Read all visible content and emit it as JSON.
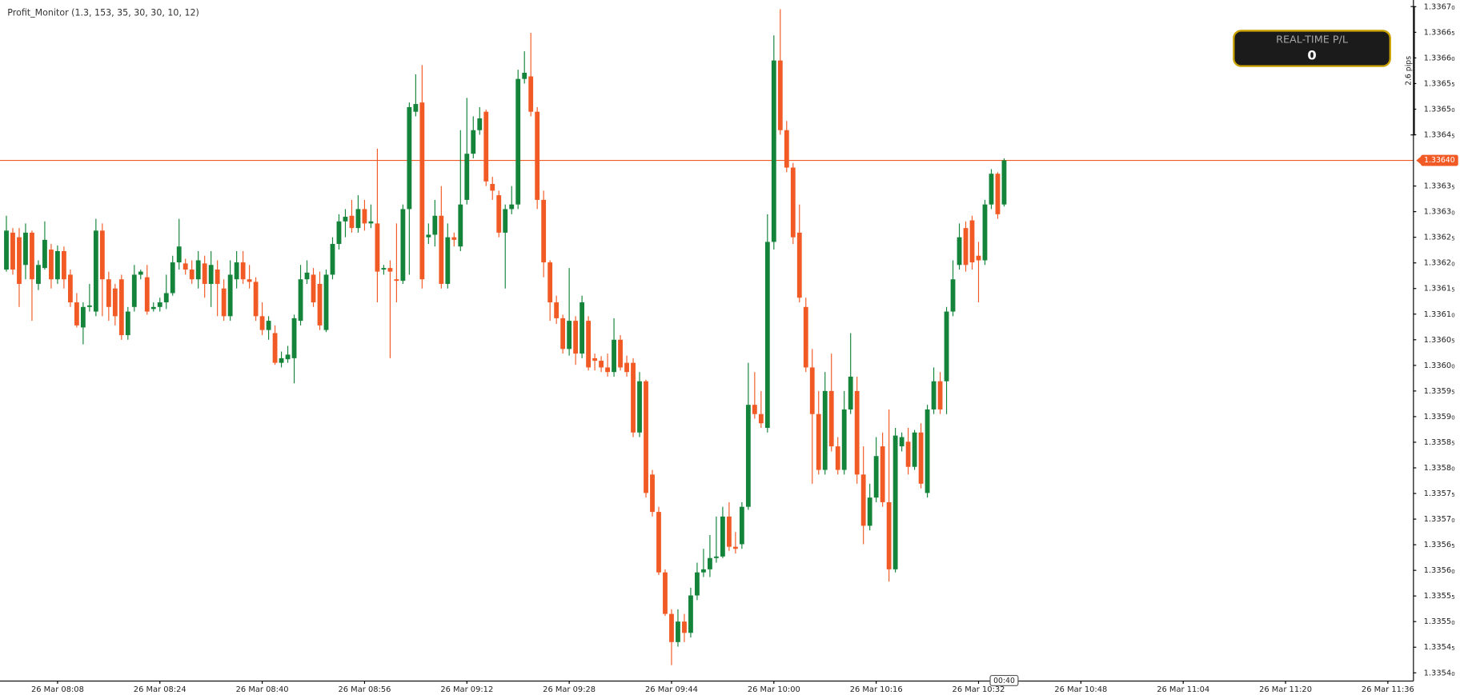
{
  "chart_data": {
    "type": "candlestick",
    "title": "Profit_Monitor (1.3, 153, 35, 30, 30, 10, 12)",
    "up_color": "#13843a",
    "down_color": "#f15a24",
    "grid": false,
    "x": [
      "26 Mar 08:00",
      "26 Mar 08:01",
      "26 Mar 08:02",
      "26 Mar 08:03",
      "26 Mar 08:04",
      "26 Mar 08:05",
      "26 Mar 08:06",
      "26 Mar 08:07",
      "26 Mar 08:08",
      "26 Mar 08:09",
      "26 Mar 08:10",
      "26 Mar 08:11",
      "26 Mar 08:12",
      "26 Mar 08:13",
      "26 Mar 08:14",
      "26 Mar 08:15",
      "26 Mar 08:16",
      "26 Mar 08:17",
      "26 Mar 08:18",
      "26 Mar 08:19",
      "26 Mar 08:20",
      "26 Mar 08:21",
      "26 Mar 08:22",
      "26 Mar 08:23",
      "26 Mar 08:24",
      "26 Mar 08:25",
      "26 Mar 08:26",
      "26 Mar 08:27",
      "26 Mar 08:28",
      "26 Mar 08:29",
      "26 Mar 08:30",
      "26 Mar 08:31",
      "26 Mar 08:32",
      "26 Mar 08:33",
      "26 Mar 08:34",
      "26 Mar 08:35",
      "26 Mar 08:36",
      "26 Mar 08:37",
      "26 Mar 08:38",
      "26 Mar 08:39",
      "26 Mar 08:40",
      "26 Mar 08:41",
      "26 Mar 08:42",
      "26 Mar 08:43",
      "26 Mar 08:44",
      "26 Mar 08:45",
      "26 Mar 08:46",
      "26 Mar 08:47",
      "26 Mar 08:48",
      "26 Mar 08:49",
      "26 Mar 08:50",
      "26 Mar 08:51",
      "26 Mar 08:52",
      "26 Mar 08:53",
      "26 Mar 08:54",
      "26 Mar 08:55",
      "26 Mar 08:56",
      "26 Mar 08:57",
      "26 Mar 08:58",
      "26 Mar 08:59",
      "26 Mar 09:00",
      "26 Mar 09:01",
      "26 Mar 09:02",
      "26 Mar 09:03",
      "26 Mar 09:04",
      "26 Mar 09:05",
      "26 Mar 09:06",
      "26 Mar 09:07",
      "26 Mar 09:08",
      "26 Mar 09:09",
      "26 Mar 09:10",
      "26 Mar 09:11",
      "26 Mar 09:12",
      "26 Mar 09:13",
      "26 Mar 09:14",
      "26 Mar 09:15",
      "26 Mar 09:16",
      "26 Mar 09:17",
      "26 Mar 09:18",
      "26 Mar 09:19",
      "26 Mar 09:20",
      "26 Mar 09:21",
      "26 Mar 09:22",
      "26 Mar 09:23",
      "26 Mar 09:24",
      "26 Mar 09:25",
      "26 Mar 09:26",
      "26 Mar 09:27",
      "26 Mar 09:28",
      "26 Mar 09:29",
      "26 Mar 09:30",
      "26 Mar 09:31",
      "26 Mar 09:32",
      "26 Mar 09:33",
      "26 Mar 09:34",
      "26 Mar 09:35",
      "26 Mar 09:36",
      "26 Mar 09:37",
      "26 Mar 09:38",
      "26 Mar 09:39",
      "26 Mar 09:40",
      "26 Mar 09:41",
      "26 Mar 09:42",
      "26 Mar 09:43",
      "26 Mar 09:44",
      "26 Mar 09:45",
      "26 Mar 09:46",
      "26 Mar 09:47",
      "26 Mar 09:48",
      "26 Mar 09:49",
      "26 Mar 09:50",
      "26 Mar 09:51",
      "26 Mar 09:52",
      "26 Mar 09:53",
      "26 Mar 09:54",
      "26 Mar 09:55",
      "26 Mar 09:56",
      "26 Mar 09:57",
      "26 Mar 09:58",
      "26 Mar 09:59",
      "26 Mar 10:00",
      "26 Mar 10:01",
      "26 Mar 10:02",
      "26 Mar 10:03",
      "26 Mar 10:04",
      "26 Mar 10:05",
      "26 Mar 10:06",
      "26 Mar 10:07",
      "26 Mar 10:08",
      "26 Mar 10:09",
      "26 Mar 10:10",
      "26 Mar 10:11",
      "26 Mar 10:12",
      "26 Mar 10:13",
      "26 Mar 10:14",
      "26 Mar 10:15",
      "26 Mar 10:16",
      "26 Mar 10:17",
      "26 Mar 10:18",
      "26 Mar 10:19",
      "26 Mar 10:20",
      "26 Mar 10:21",
      "26 Mar 10:22",
      "26 Mar 10:23",
      "26 Mar 10:24",
      "26 Mar 10:25",
      "26 Mar 10:26",
      "26 Mar 10:27",
      "26 Mar 10:28",
      "26 Mar 10:29",
      "26 Mar 10:30",
      "26 Mar 10:31",
      "26 Mar 10:32",
      "26 Mar 10:33",
      "26 Mar 10:34",
      "26 Mar 10:35",
      "26 Mar 10:36"
    ],
    "open": [
      1.336187,
      1.336259,
      1.33625,
      1.336196,
      1.336259,
      1.336159,
      1.33619,
      1.336226,
      1.336168,
      1.336223,
      1.336177,
      1.336123,
      1.336074,
      1.336114,
      1.336105,
      1.336263,
      1.336168,
      1.33615,
      1.336168,
      1.336059,
      1.336114,
      1.336177,
      1.336172,
      1.33611,
      1.336114,
      1.336123,
      1.336141,
      1.336201,
      1.336199,
      1.336187,
      1.336168,
      1.336199,
      1.336159,
      1.336187,
      1.33615,
      1.336096,
      1.336168,
      1.336201,
      1.336168,
      1.336163,
      1.336096,
      1.336069,
      1.336063,
      1.336005,
      1.336012,
      1.336014,
      1.336087,
      1.336168,
      1.336177,
      1.336159,
      1.336069,
      1.336177,
      1.336237,
      1.336281,
      1.336292,
      1.336268,
      1.336305,
      1.336277,
      1.336277,
      1.336187,
      1.33619,
      1.336168,
      1.336165,
      1.336305,
      1.336495,
      1.336513,
      1.33625,
      1.336255,
      1.336292,
      1.336159,
      1.33625,
      1.336232,
      1.336323,
      1.336413,
      1.336459,
      1.336495,
      1.336354,
      1.336332,
      1.336259,
      1.336305,
      1.336314,
      1.336559,
      1.336564,
      1.336495,
      1.336323,
      1.336201,
      1.336123,
      1.336092,
      1.336032,
      1.336087,
      1.336023,
      1.336087,
      1.336014,
      1.336009,
      1.335996,
      1.335987,
      1.33605,
      1.336005,
      1.336005,
      1.335869,
      1.335969,
      1.335787,
      1.335714,
      1.335596,
      1.335515,
      1.33546,
      1.3355,
      1.335478,
      1.335551,
      1.335596,
      1.335602,
      1.335624,
      1.335627,
      1.335705,
      1.335646,
      1.335651,
      1.335724,
      1.335923,
      1.335905,
      1.335878,
      1.336241,
      1.336595,
      1.336459,
      1.336386,
      1.336259,
      1.336114,
      1.335996,
      1.335905,
      1.335796,
      1.33595,
      1.335842,
      1.335796,
      1.335914,
      1.33595,
      1.335787,
      1.335687,
      1.335742,
      1.335842,
      1.335733,
      1.335602,
      1.335842,
      1.335851,
      1.335802,
      1.335869,
      1.335751,
      1.335914,
      1.335969,
      1.335969,
      1.336105,
      1.336196,
      1.336268,
      1.336283,
      1.336214,
      1.336205,
      1.336314,
      1.336374,
      1.336314
    ],
    "high": [
      1.336292,
      1.336268,
      1.336268,
      1.336277,
      1.336263,
      1.336205,
      1.336281,
      1.336237,
      1.336234,
      1.336232,
      1.336187,
      1.336141,
      1.336123,
      1.336159,
      1.336286,
      1.336277,
      1.336183,
      1.336159,
      1.336177,
      1.336114,
      1.336196,
      1.336187,
      1.336196,
      1.336123,
      1.336132,
      1.336177,
      1.336214,
      1.336286,
      1.336208,
      1.336205,
      1.336223,
      1.336214,
      1.336223,
      1.336205,
      1.336168,
      1.336205,
      1.336223,
      1.336223,
      1.336196,
      1.336172,
      1.336123,
      1.336096,
      1.336078,
      1.336027,
      1.336038,
      1.336099,
      1.336196,
      1.336205,
      1.33619,
      1.336183,
      1.336187,
      1.33625,
      1.336295,
      1.336305,
      1.336323,
      1.336332,
      1.336323,
      1.336314,
      1.336423,
      1.336196,
      1.336205,
      1.336277,
      1.336314,
      1.336513,
      1.336568,
      1.336586,
      1.336277,
      1.336323,
      1.33635,
      1.336277,
      1.336259,
      1.336459,
      1.336522,
      1.336486,
      1.336504,
      1.336499,
      1.336368,
      1.336341,
      1.336314,
      1.33635,
      1.336577,
      1.336613,
      1.336649,
      1.336504,
      1.336341,
      1.336205,
      1.336136,
      1.336099,
      1.33619,
      1.336096,
      1.336136,
      1.336096,
      1.336023,
      1.336018,
      1.336023,
      1.336092,
      1.336059,
      1.336019,
      1.336014,
      1.335987,
      1.335972,
      1.335796,
      1.335724,
      1.335602,
      1.335524,
      1.335524,
      1.335515,
      1.335566,
      1.335615,
      1.335642,
      1.335669,
      1.335705,
      1.335724,
      1.335733,
      1.335675,
      1.335733,
      1.336005,
      1.335987,
      1.33595,
      1.336295,
      1.336644,
      1.336695,
      1.336477,
      1.336395,
      1.336314,
      1.336132,
      1.336032,
      1.33595,
      1.335987,
      1.336023,
      1.33586,
      1.33595,
      1.336063,
      1.335978,
      1.335842,
      1.335769,
      1.33586,
      1.335869,
      1.335914,
      1.335878,
      1.335869,
      1.335878,
      1.335874,
      1.335887,
      1.335923,
      1.335996,
      1.335987,
      1.336114,
      1.336205,
      1.336277,
      1.336281,
      1.336292,
      1.336241,
      1.336323,
      1.336383,
      1.336377,
      1.336404
    ],
    "low": [
      1.336183,
      1.336177,
      1.336114,
      1.336168,
      1.336087,
      1.336147,
      1.336187,
      1.33615,
      1.336159,
      1.33615,
      1.336114,
      1.336074,
      1.336041,
      1.336105,
      1.336096,
      1.336096,
      1.336087,
      1.336078,
      1.33605,
      1.33605,
      1.336105,
      1.336168,
      1.336099,
      1.336105,
      1.336105,
      1.33611,
      1.336136,
      1.336187,
      1.336177,
      1.336159,
      1.33615,
      1.336132,
      1.336114,
      1.336096,
      1.336087,
      1.336087,
      1.33615,
      1.336159,
      1.33615,
      1.336087,
      1.336059,
      1.33605,
      1.336001,
      1.335996,
      1.336005,
      1.335965,
      1.336078,
      1.336159,
      1.336114,
      1.336069,
      1.336065,
      1.336168,
      1.336226,
      1.33625,
      1.336259,
      1.336259,
      1.336263,
      1.336268,
      1.336123,
      1.336177,
      1.336014,
      1.336123,
      1.336159,
      1.336177,
      1.336486,
      1.33615,
      1.336237,
      1.336232,
      1.33615,
      1.33615,
      1.336232,
      1.336223,
      1.336314,
      1.336404,
      1.33645,
      1.33635,
      1.336323,
      1.33625,
      1.33615,
      1.336295,
      1.336305,
      1.33655,
      1.336486,
      1.336305,
      1.336172,
      1.336087,
      1.336081,
      1.336023,
      1.336019,
      1.336001,
      1.336014,
      1.33599,
      1.33599,
      1.335987,
      1.335978,
      1.335978,
      1.33599,
      1.335978,
      1.33586,
      1.33586,
      1.335742,
      1.335705,
      1.335591,
      1.335511,
      1.335415,
      1.335451,
      1.33546,
      1.335469,
      1.335542,
      1.335587,
      1.335587,
      1.335615,
      1.335624,
      1.335638,
      1.335633,
      1.335642,
      1.335718,
      1.335896,
      1.335878,
      1.335869,
      1.336226,
      1.33645,
      1.336377,
      1.336237,
      1.336123,
      1.335987,
      1.335769,
      1.335787,
      1.335787,
      1.335832,
      1.335787,
      1.335787,
      1.335905,
      1.335769,
      1.335651,
      1.335678,
      1.335733,
      1.335724,
      1.335578,
      1.335596,
      1.335832,
      1.335787,
      1.335796,
      1.33576,
      1.335742,
      1.335905,
      1.335905,
      1.335905,
      1.336096,
      1.336187,
      1.336183,
      1.336187,
      1.336123,
      1.336196,
      1.336305,
      1.336286,
      1.33631
    ],
    "close": [
      1.336263,
      1.336187,
      1.336159,
      1.336259,
      1.336168,
      1.336196,
      1.336245,
      1.336168,
      1.336223,
      1.336168,
      1.336123,
      1.336078,
      1.336114,
      1.336117,
      1.336263,
      1.336168,
      1.336114,
      1.336096,
      1.336059,
      1.336105,
      1.336177,
      1.336183,
      1.336105,
      1.336114,
      1.336123,
      1.336141,
      1.336201,
      1.336232,
      1.336187,
      1.336168,
      1.336205,
      1.336159,
      1.336196,
      1.336159,
      1.336096,
      1.336177,
      1.336201,
      1.336168,
      1.336163,
      1.336096,
      1.336069,
      1.336087,
      1.336005,
      1.336014,
      1.336021,
      1.336092,
      1.336168,
      1.336181,
      1.336123,
      1.336078,
      1.336177,
      1.336237,
      1.336281,
      1.33629,
      1.336268,
      1.336305,
      1.336277,
      1.336281,
      1.336183,
      1.33619,
      1.336183,
      1.336165,
      1.336305,
      1.336504,
      1.33651,
      1.336168,
      1.336255,
      1.336292,
      1.336159,
      1.33625,
      1.336245,
      1.336314,
      1.336413,
      1.336459,
      1.336482,
      1.336359,
      1.336341,
      1.336259,
      1.336305,
      1.336314,
      1.336559,
      1.336571,
      1.336495,
      1.336323,
      1.336201,
      1.336123,
      1.336092,
      1.336032,
      1.336087,
      1.336023,
      1.336123,
      1.335996,
      1.336009,
      1.335996,
      1.335987,
      1.33605,
      1.335996,
      1.335987,
      1.335869,
      1.335969,
      1.335751,
      1.335714,
      1.335596,
      1.335515,
      1.33546,
      1.3355,
      1.335478,
      1.335551,
      1.335596,
      1.335602,
      1.335624,
      1.335627,
      1.335705,
      1.335646,
      1.335642,
      1.335724,
      1.335923,
      1.335905,
      1.335887,
      1.336241,
      1.336595,
      1.336459,
      1.336386,
      1.33625,
      1.336132,
      1.335996,
      1.335905,
      1.335796,
      1.33595,
      1.335842,
      1.335796,
      1.335914,
      1.335978,
      1.335787,
      1.335687,
      1.335742,
      1.335823,
      1.335733,
      1.335602,
      1.335863,
      1.33586,
      1.335802,
      1.335869,
      1.335769,
      1.335914,
      1.335969,
      1.335914,
      1.336105,
      1.336168,
      1.33625,
      1.336196,
      1.336201,
      1.336205,
      1.336314,
      1.336374,
      1.336295,
      1.3364
    ],
    "xlim": [
      "26 Mar 07:59",
      "26 Mar 11:40"
    ],
    "xticks": [
      "26 Mar 08:08",
      "26 Mar 08:24",
      "26 Mar 08:40",
      "26 Mar 08:56",
      "26 Mar 09:12",
      "26 Mar 09:28",
      "26 Mar 09:44",
      "26 Mar 10:00",
      "26 Mar 10:16",
      "26 Mar 10:32",
      "26 Mar 10:48",
      "26 Mar 11:04",
      "26 Mar 11:20",
      "26 Mar 11:36"
    ],
    "ylim": [
      1.335384,
      1.336713
    ],
    "yticks": [
      {
        "value": 1.3354,
        "label": "1.33540"
      },
      {
        "value": 1.33545,
        "label": "1.33545"
      },
      {
        "value": 1.3355,
        "label": "1.33550"
      },
      {
        "value": 1.33555,
        "label": "1.33555"
      },
      {
        "value": 1.3356,
        "label": "1.33560"
      },
      {
        "value": 1.33565,
        "label": "1.33565"
      },
      {
        "value": 1.3357,
        "label": "1.33570"
      },
      {
        "value": 1.33575,
        "label": "1.33575"
      },
      {
        "value": 1.3358,
        "label": "1.33580"
      },
      {
        "value": 1.33585,
        "label": "1.33585"
      },
      {
        "value": 1.3359,
        "label": "1.33590"
      },
      {
        "value": 1.33595,
        "label": "1.33595"
      },
      {
        "value": 1.336,
        "label": "1.33600"
      },
      {
        "value": 1.33605,
        "label": "1.33605"
      },
      {
        "value": 1.3361,
        "label": "1.33610"
      },
      {
        "value": 1.33615,
        "label": "1.33615"
      },
      {
        "value": 1.3362,
        "label": "1.33620"
      },
      {
        "value": 1.33625,
        "label": "1.33625"
      },
      {
        "value": 1.3363,
        "label": "1.33630"
      },
      {
        "value": 1.33635,
        "label": "1.33635"
      },
      {
        "value": 1.33645,
        "label": "1.33645"
      },
      {
        "value": 1.3365,
        "label": "1.33650"
      },
      {
        "value": 1.33655,
        "label": "1.33655"
      },
      {
        "value": 1.3366,
        "label": "1.33660"
      },
      {
        "value": 1.33665,
        "label": "1.33665"
      },
      {
        "value": 1.3367,
        "label": "1.33670"
      }
    ],
    "current_price": {
      "value": 1.3364,
      "label": "1.33640"
    },
    "price_line_color": "#f15a24",
    "countdown": "00:40",
    "range_label": "2.6 pips"
  },
  "panel": {
    "title": "REAL-TIME P/L",
    "value": 0
  }
}
